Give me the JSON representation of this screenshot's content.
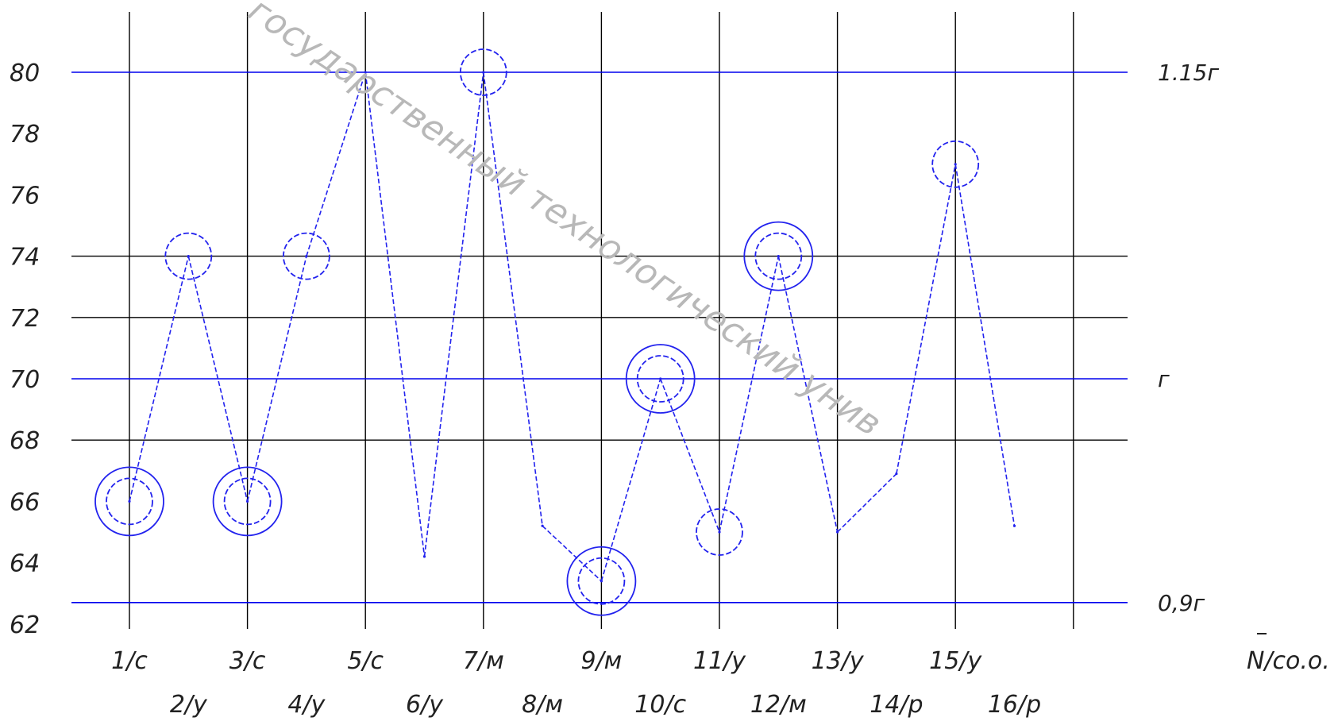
{
  "chart_data": {
    "type": "line",
    "ylim": [
      62,
      80
    ],
    "y_ticks": [
      80,
      78,
      76,
      74,
      72,
      70,
      68,
      66,
      64,
      62
    ],
    "grid": true,
    "colors": {
      "grid": "#000000",
      "reference": "#0000ee",
      "series": "#2222ee"
    },
    "categories": [
      "1/с",
      "2/у",
      "3/с",
      "4/у",
      "5/с",
      "6/у",
      "7/м",
      "8/м",
      "9/м",
      "10/с",
      "11/у",
      "12/м",
      "13/у",
      "14/р",
      "15/у",
      "16/р"
    ],
    "x_end_label": "N/со.о.",
    "reference_lines": [
      {
        "label": "1.15г",
        "value": 80
      },
      {
        "label": "г",
        "value": 70
      },
      {
        "label": "0,9г",
        "value": 62.7
      }
    ],
    "series": [
      {
        "values": [
          66,
          74,
          66,
          74,
          80,
          64.2,
          80,
          65.2,
          63.4,
          70,
          65,
          74,
          65,
          66.9,
          77,
          65.2
        ]
      }
    ],
    "markers": [
      {
        "category": "1/с",
        "value": 66,
        "rings": 2
      },
      {
        "category": "2/у",
        "value": 74,
        "rings": 1
      },
      {
        "category": "3/с",
        "value": 66,
        "rings": 2
      },
      {
        "category": "4/у",
        "value": 74,
        "rings": 1
      },
      {
        "category": "7/м",
        "value": 80,
        "rings": 1
      },
      {
        "category": "9/м",
        "value": 63.4,
        "rings": 2
      },
      {
        "category": "10/с",
        "value": 70,
        "rings": 2
      },
      {
        "category": "11/у",
        "value": 65,
        "rings": 1
      },
      {
        "category": "12/м",
        "value": 74,
        "rings": 2
      },
      {
        "category": "15/у",
        "value": 77,
        "rings": 1
      }
    ],
    "watermark": "государственный технологический унив"
  }
}
